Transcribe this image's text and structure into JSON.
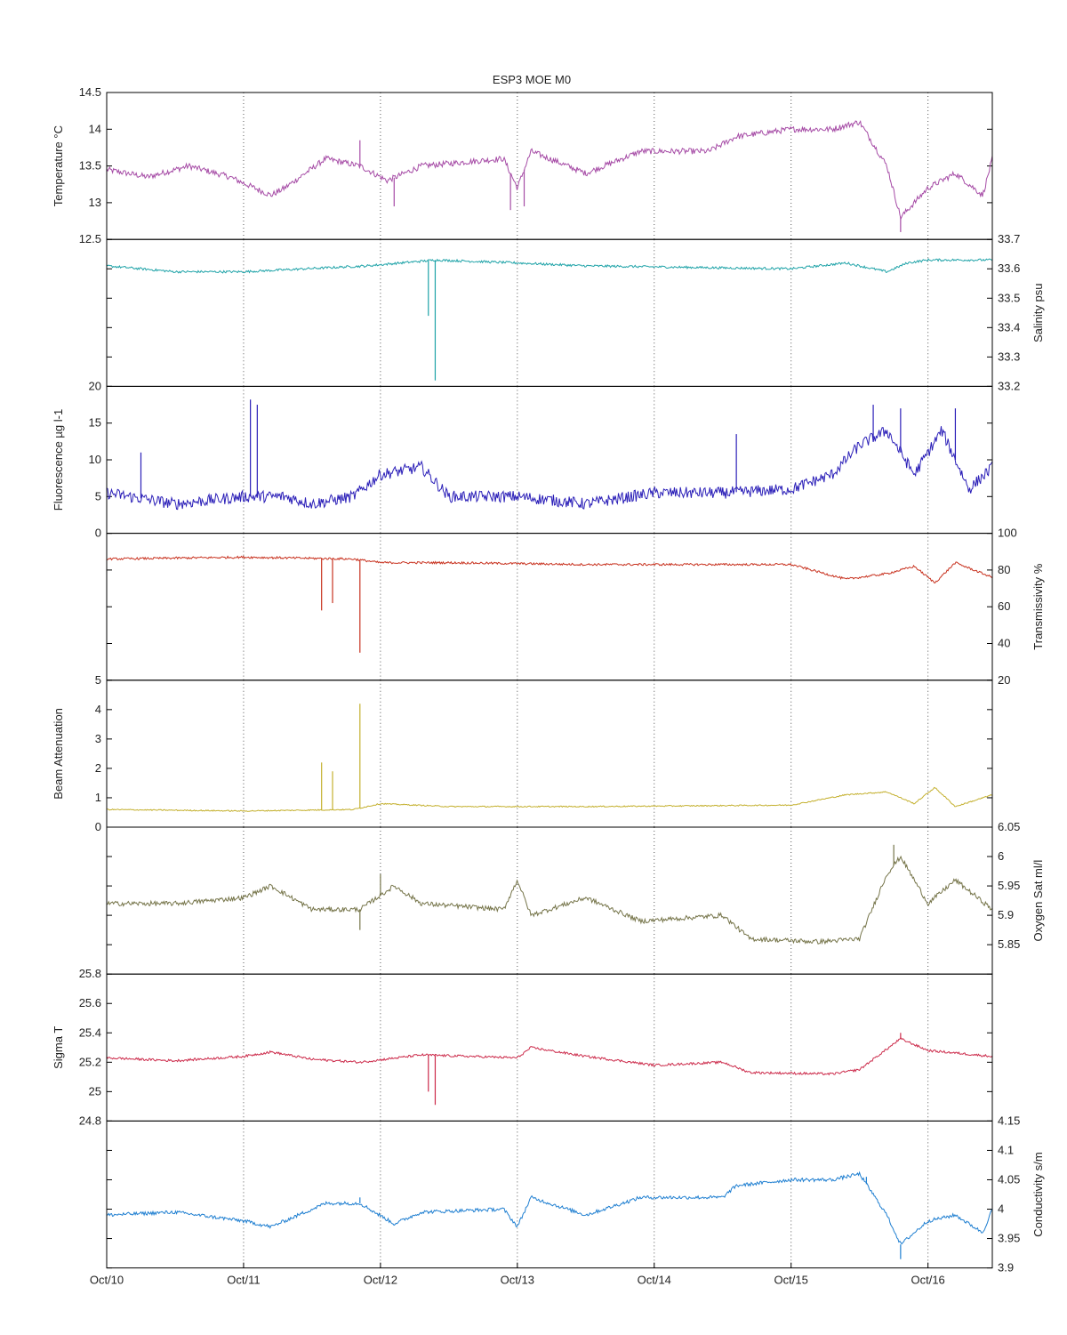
{
  "chart_data": {
    "type": "line",
    "title": "ESP3 MOE   M0",
    "x_ticks": [
      "Oct/10",
      "Oct/11",
      "Oct/12",
      "Oct/13",
      "Oct/14",
      "Oct/15",
      "Oct/16"
    ],
    "x_range": [
      0,
      6.47
    ],
    "grid": "vertical dotted at day ticks",
    "panels": [
      {
        "name": "Temperature",
        "ylabel": "Temperature °C",
        "axis_side": "left",
        "ylim": [
          12.5,
          14.5
        ],
        "ticks": [
          12.5,
          13,
          13.5,
          14,
          14.5
        ],
        "color": "#a64ca6",
        "noise": 0.04,
        "series": [
          [
            0,
            13.45
          ],
          [
            0.3,
            13.35
          ],
          [
            0.6,
            13.5
          ],
          [
            0.9,
            13.35
          ],
          [
            1.2,
            13.1
          ],
          [
            1.3,
            13.2
          ],
          [
            1.6,
            13.6
          ],
          [
            1.85,
            13.5
          ],
          [
            2.05,
            13.3
          ],
          [
            2.3,
            13.5
          ],
          [
            2.9,
            13.6
          ],
          [
            3.0,
            13.2
          ],
          [
            3.1,
            13.7
          ],
          [
            3.5,
            13.4
          ],
          [
            3.9,
            13.7
          ],
          [
            4.4,
            13.7
          ],
          [
            4.6,
            13.9
          ],
          [
            5.0,
            14.0
          ],
          [
            5.3,
            14.0
          ],
          [
            5.5,
            14.1
          ],
          [
            5.7,
            13.5
          ],
          [
            5.8,
            12.8
          ],
          [
            6.0,
            13.2
          ],
          [
            6.2,
            13.4
          ],
          [
            6.4,
            13.1
          ],
          [
            6.47,
            13.6
          ]
        ],
        "spikes": [
          [
            1.85,
            13.85
          ],
          [
            2.1,
            12.95
          ],
          [
            2.95,
            12.9
          ],
          [
            3.05,
            12.95
          ],
          [
            5.8,
            12.6
          ]
        ]
      },
      {
        "name": "Salinity",
        "ylabel": "Salinity psu",
        "axis_side": "right",
        "ylim": [
          33.2,
          33.7
        ],
        "ticks": [
          33.2,
          33.3,
          33.4,
          33.5,
          33.6,
          33.7
        ],
        "color": "#1fa3a8",
        "noise": 0.004,
        "series": [
          [
            0,
            33.61
          ],
          [
            0.5,
            33.59
          ],
          [
            1.0,
            33.59
          ],
          [
            1.9,
            33.61
          ],
          [
            2.4,
            33.63
          ],
          [
            3.0,
            33.62
          ],
          [
            3.5,
            33.61
          ],
          [
            5.0,
            33.6
          ],
          [
            5.4,
            33.62
          ],
          [
            5.7,
            33.59
          ],
          [
            5.85,
            33.62
          ],
          [
            6.0,
            33.63
          ],
          [
            6.47,
            33.63
          ]
        ],
        "spikes": [
          [
            2.35,
            33.44
          ],
          [
            2.4,
            33.22
          ]
        ]
      },
      {
        "name": "Fluorescence",
        "ylabel": "Fluorescence µg l-1",
        "axis_side": "left",
        "ylim": [
          0,
          20
        ],
        "ticks": [
          0,
          5,
          10,
          15,
          20
        ],
        "color": "#2b1fb8",
        "noise": 0.8,
        "series": [
          [
            0,
            5.5
          ],
          [
            0.5,
            4.0
          ],
          [
            1.0,
            5.0
          ],
          [
            1.3,
            5.0
          ],
          [
            1.5,
            4.0
          ],
          [
            1.8,
            5.0
          ],
          [
            2.0,
            8.0
          ],
          [
            2.3,
            9.0
          ],
          [
            2.5,
            5.0
          ],
          [
            3.0,
            5.0
          ],
          [
            3.5,
            4.0
          ],
          [
            4.0,
            5.5
          ],
          [
            4.5,
            5.5
          ],
          [
            5.0,
            6.0
          ],
          [
            5.3,
            8.0
          ],
          [
            5.5,
            12.0
          ],
          [
            5.7,
            14.0
          ],
          [
            5.9,
            8.0
          ],
          [
            6.1,
            14.0
          ],
          [
            6.3,
            6.0
          ],
          [
            6.47,
            9.0
          ]
        ],
        "spikes": [
          [
            1.05,
            18.2
          ],
          [
            1.1,
            17.5
          ],
          [
            0.25,
            11.0
          ],
          [
            4.6,
            13.5
          ],
          [
            5.6,
            17.5
          ],
          [
            5.8,
            17.0
          ],
          [
            6.2,
            17.0
          ]
        ]
      },
      {
        "name": "Transmissivity",
        "ylabel": "Transmissivity %",
        "axis_side": "right",
        "ylim": [
          20,
          100
        ],
        "ticks": [
          20,
          40,
          60,
          80,
          100
        ],
        "color": "#c8321f",
        "noise": 0.6,
        "series": [
          [
            0,
            86
          ],
          [
            1.0,
            87
          ],
          [
            1.8,
            86
          ],
          [
            2.0,
            84
          ],
          [
            2.5,
            84
          ],
          [
            3.5,
            83
          ],
          [
            5.0,
            83
          ],
          [
            5.4,
            75
          ],
          [
            5.7,
            78
          ],
          [
            5.9,
            82
          ],
          [
            6.05,
            73
          ],
          [
            6.2,
            84
          ],
          [
            6.47,
            76
          ]
        ],
        "spikes": [
          [
            1.57,
            58
          ],
          [
            1.65,
            62
          ],
          [
            1.85,
            35
          ]
        ]
      },
      {
        "name": "Beam Attenuation",
        "ylabel": "Beam Attenuation",
        "axis_side": "left",
        "ylim": [
          0,
          5
        ],
        "ticks": [
          0,
          1,
          2,
          3,
          4,
          5
        ],
        "color": "#c4b02e",
        "noise": 0.02,
        "series": [
          [
            0,
            0.6
          ],
          [
            1.0,
            0.55
          ],
          [
            1.8,
            0.6
          ],
          [
            2.0,
            0.8
          ],
          [
            2.5,
            0.7
          ],
          [
            3.5,
            0.7
          ],
          [
            5.0,
            0.75
          ],
          [
            5.4,
            1.1
          ],
          [
            5.7,
            1.2
          ],
          [
            5.9,
            0.8
          ],
          [
            6.05,
            1.35
          ],
          [
            6.2,
            0.7
          ],
          [
            6.47,
            1.1
          ]
        ],
        "spikes": [
          [
            1.57,
            2.2
          ],
          [
            1.65,
            1.9
          ],
          [
            1.85,
            4.2
          ]
        ]
      },
      {
        "name": "Oxygen Sat",
        "ylabel": "Oxygen Sat ml/l",
        "axis_side": "right",
        "ylim": [
          5.8,
          6.05
        ],
        "ticks": [
          5.85,
          5.9,
          5.95,
          6,
          6.05
        ],
        "color": "#76754a",
        "noise": 0.004,
        "series": [
          [
            0,
            5.92
          ],
          [
            0.5,
            5.92
          ],
          [
            1.0,
            5.93
          ],
          [
            1.2,
            5.95
          ],
          [
            1.5,
            5.91
          ],
          [
            1.85,
            5.91
          ],
          [
            2.1,
            5.95
          ],
          [
            2.3,
            5.92
          ],
          [
            2.9,
            5.91
          ],
          [
            3.0,
            5.96
          ],
          [
            3.1,
            5.9
          ],
          [
            3.5,
            5.93
          ],
          [
            3.9,
            5.89
          ],
          [
            4.5,
            5.9
          ],
          [
            4.7,
            5.86
          ],
          [
            5.2,
            5.855
          ],
          [
            5.5,
            5.86
          ],
          [
            5.7,
            5.97
          ],
          [
            5.8,
            6.0
          ],
          [
            6.0,
            5.92
          ],
          [
            6.2,
            5.96
          ],
          [
            6.47,
            5.91
          ]
        ],
        "spikes": [
          [
            1.85,
            5.875
          ],
          [
            5.75,
            6.02
          ],
          [
            2.0,
            5.97
          ]
        ]
      },
      {
        "name": "Sigma T",
        "ylabel": "Sigma T",
        "axis_side": "left",
        "ylim": [
          24.8,
          25.8
        ],
        "ticks": [
          24.8,
          25,
          25.2,
          25.4,
          25.6,
          25.8
        ],
        "color": "#cc2a4a",
        "noise": 0.008,
        "series": [
          [
            0,
            25.23
          ],
          [
            0.5,
            25.21
          ],
          [
            1.0,
            25.24
          ],
          [
            1.2,
            25.27
          ],
          [
            1.5,
            25.22
          ],
          [
            1.85,
            25.2
          ],
          [
            2.3,
            25.25
          ],
          [
            3.0,
            25.23
          ],
          [
            3.1,
            25.3
          ],
          [
            3.5,
            25.24
          ],
          [
            4.0,
            25.18
          ],
          [
            4.5,
            25.2
          ],
          [
            4.7,
            25.13
          ],
          [
            5.3,
            25.12
          ],
          [
            5.5,
            25.15
          ],
          [
            5.8,
            25.36
          ],
          [
            6.0,
            25.28
          ],
          [
            6.47,
            25.24
          ]
        ],
        "spikes": [
          [
            2.35,
            25.0
          ],
          [
            2.4,
            24.91
          ],
          [
            5.8,
            25.4
          ]
        ]
      },
      {
        "name": "Conductivity",
        "ylabel": "Conductivity s/m",
        "axis_side": "right",
        "ylim": [
          3.9,
          4.15
        ],
        "ticks": [
          3.9,
          3.95,
          4,
          4.05,
          4.1,
          4.15
        ],
        "color": "#1f7fd1",
        "noise": 0.003,
        "series": [
          [
            0,
            3.99
          ],
          [
            0.5,
            3.995
          ],
          [
            1.0,
            3.98
          ],
          [
            1.2,
            3.97
          ],
          [
            1.6,
            4.01
          ],
          [
            1.85,
            4.01
          ],
          [
            2.1,
            3.975
          ],
          [
            2.3,
            3.995
          ],
          [
            2.9,
            4.0
          ],
          [
            3.0,
            3.97
          ],
          [
            3.1,
            4.02
          ],
          [
            3.5,
            3.99
          ],
          [
            3.9,
            4.02
          ],
          [
            4.5,
            4.02
          ],
          [
            4.6,
            4.04
          ],
          [
            5.0,
            4.05
          ],
          [
            5.3,
            4.05
          ],
          [
            5.5,
            4.06
          ],
          [
            5.7,
            3.99
          ],
          [
            5.8,
            3.94
          ],
          [
            6.0,
            3.98
          ],
          [
            6.2,
            3.99
          ],
          [
            6.4,
            3.96
          ],
          [
            6.47,
            4.0
          ]
        ],
        "spikes": [
          [
            1.85,
            4.02
          ],
          [
            5.8,
            3.915
          ],
          [
            5.55,
            4.055
          ]
        ]
      }
    ]
  }
}
